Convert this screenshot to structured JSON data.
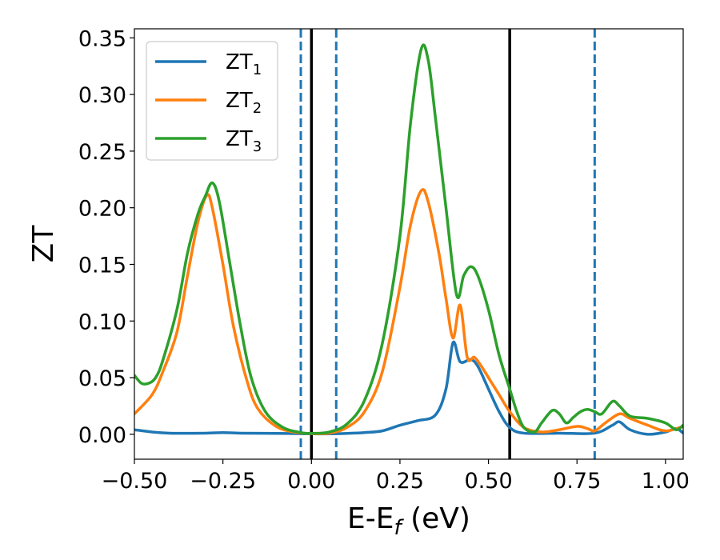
{
  "chart_data": {
    "type": "line",
    "xlabel": "E-E",
    "xlabel_sub": "f",
    "xlabel_unit": " (eV)",
    "ylabel": "ZT",
    "xlim": [
      -0.5,
      1.05
    ],
    "ylim": [
      -0.022,
      0.358
    ],
    "x_ticks": [
      -0.5,
      -0.25,
      0.0,
      0.25,
      0.5,
      0.75,
      1.0
    ],
    "x_tick_labels": [
      "−0.50",
      "−0.25",
      "0.00",
      "0.25",
      "0.50",
      "0.75",
      "1.00"
    ],
    "y_ticks": [
      0.0,
      0.05,
      0.1,
      0.15,
      0.2,
      0.25,
      0.3,
      0.35
    ],
    "y_tick_labels": [
      "0.00",
      "0.05",
      "0.10",
      "0.15",
      "0.20",
      "0.25",
      "0.30",
      "0.35"
    ],
    "legend": {
      "placement": "top-left",
      "entries": [
        {
          "label": "ZT",
          "sub": "1",
          "color": "#1f77b4"
        },
        {
          "label": "ZT",
          "sub": "2",
          "color": "#ff7f0e"
        },
        {
          "label": "ZT",
          "sub": "3",
          "color": "#2ca02c"
        }
      ]
    },
    "vlines": [
      {
        "x": -0.03,
        "style": "dashed",
        "color": "#1f77b4"
      },
      {
        "x": 0.0,
        "style": "solid",
        "color": "#000000"
      },
      {
        "x": 0.07,
        "style": "dashed",
        "color": "#1f77b4"
      },
      {
        "x": 0.56,
        "style": "solid",
        "color": "#000000"
      },
      {
        "x": 0.8,
        "style": "dashed",
        "color": "#1f77b4"
      }
    ],
    "series": [
      {
        "name": "ZT1",
        "color": "#1f77b4",
        "points": [
          [
            -0.5,
            0.004
          ],
          [
            -0.45,
            0.002
          ],
          [
            -0.4,
            0.001
          ],
          [
            -0.3,
            0.001
          ],
          [
            -0.25,
            0.0015
          ],
          [
            -0.2,
            0.001
          ],
          [
            -0.1,
            0.0008
          ],
          [
            0.0,
            0.0004
          ],
          [
            0.05,
            0.0004
          ],
          [
            0.1,
            0.0008
          ],
          [
            0.15,
            0.0015
          ],
          [
            0.2,
            0.003
          ],
          [
            0.25,
            0.008
          ],
          [
            0.3,
            0.012
          ],
          [
            0.35,
            0.017
          ],
          [
            0.38,
            0.04
          ],
          [
            0.4,
            0.081
          ],
          [
            0.42,
            0.064
          ],
          [
            0.45,
            0.066
          ],
          [
            0.47,
            0.06
          ],
          [
            0.5,
            0.04
          ],
          [
            0.53,
            0.02
          ],
          [
            0.56,
            0.006
          ],
          [
            0.6,
            0.001
          ],
          [
            0.7,
            0.001
          ],
          [
            0.8,
            0.001
          ],
          [
            0.85,
            0.008
          ],
          [
            0.87,
            0.011
          ],
          [
            0.9,
            0.004
          ],
          [
            0.95,
            0.0
          ],
          [
            1.0,
            0.002
          ],
          [
            1.03,
            0.005
          ],
          [
            1.05,
            0.001
          ]
        ]
      },
      {
        "name": "ZT2",
        "color": "#ff7f0e",
        "points": [
          [
            -0.5,
            0.018
          ],
          [
            -0.45,
            0.035
          ],
          [
            -0.42,
            0.055
          ],
          [
            -0.38,
            0.09
          ],
          [
            -0.35,
            0.14
          ],
          [
            -0.32,
            0.188
          ],
          [
            -0.295,
            0.211
          ],
          [
            -0.28,
            0.2
          ],
          [
            -0.25,
            0.15
          ],
          [
            -0.22,
            0.095
          ],
          [
            -0.18,
            0.045
          ],
          [
            -0.15,
            0.022
          ],
          [
            -0.1,
            0.007
          ],
          [
            -0.05,
            0.002
          ],
          [
            0.0,
            0.0006
          ],
          [
            0.05,
            0.001
          ],
          [
            0.1,
            0.006
          ],
          [
            0.15,
            0.02
          ],
          [
            0.2,
            0.055
          ],
          [
            0.25,
            0.13
          ],
          [
            0.28,
            0.185
          ],
          [
            0.31,
            0.215
          ],
          [
            0.33,
            0.205
          ],
          [
            0.36,
            0.16
          ],
          [
            0.38,
            0.12
          ],
          [
            0.4,
            0.085
          ],
          [
            0.42,
            0.114
          ],
          [
            0.44,
            0.068
          ],
          [
            0.46,
            0.068
          ],
          [
            0.48,
            0.06
          ],
          [
            0.5,
            0.05
          ],
          [
            0.53,
            0.035
          ],
          [
            0.56,
            0.02
          ],
          [
            0.6,
            0.006
          ],
          [
            0.65,
            0.002
          ],
          [
            0.7,
            0.004
          ],
          [
            0.75,
            0.007
          ],
          [
            0.78,
            0.005
          ],
          [
            0.8,
            0.003
          ],
          [
            0.83,
            0.01
          ],
          [
            0.87,
            0.018
          ],
          [
            0.9,
            0.014
          ],
          [
            0.95,
            0.008
          ],
          [
            1.0,
            0.003
          ],
          [
            1.05,
            0.007
          ]
        ]
      },
      {
        "name": "ZT3",
        "color": "#2ca02c",
        "points": [
          [
            -0.5,
            0.052
          ],
          [
            -0.48,
            0.045
          ],
          [
            -0.46,
            0.045
          ],
          [
            -0.44,
            0.05
          ],
          [
            -0.42,
            0.065
          ],
          [
            -0.38,
            0.11
          ],
          [
            -0.35,
            0.16
          ],
          [
            -0.32,
            0.195
          ],
          [
            -0.3,
            0.21
          ],
          [
            -0.28,
            0.222
          ],
          [
            -0.26,
            0.205
          ],
          [
            -0.23,
            0.15
          ],
          [
            -0.2,
            0.095
          ],
          [
            -0.17,
            0.05
          ],
          [
            -0.13,
            0.02
          ],
          [
            -0.08,
            0.006
          ],
          [
            -0.03,
            0.0015
          ],
          [
            0.0,
            0.0008
          ],
          [
            0.05,
            0.002
          ],
          [
            0.1,
            0.009
          ],
          [
            0.15,
            0.03
          ],
          [
            0.2,
            0.08
          ],
          [
            0.25,
            0.175
          ],
          [
            0.28,
            0.275
          ],
          [
            0.31,
            0.34
          ],
          [
            0.33,
            0.33
          ],
          [
            0.35,
            0.28
          ],
          [
            0.38,
            0.2
          ],
          [
            0.41,
            0.123
          ],
          [
            0.43,
            0.14
          ],
          [
            0.45,
            0.148
          ],
          [
            0.47,
            0.14
          ],
          [
            0.5,
            0.11
          ],
          [
            0.53,
            0.07
          ],
          [
            0.56,
            0.04
          ],
          [
            0.58,
            0.02
          ],
          [
            0.6,
            0.006
          ],
          [
            0.63,
            0.002
          ],
          [
            0.65,
            0.01
          ],
          [
            0.68,
            0.021
          ],
          [
            0.7,
            0.018
          ],
          [
            0.72,
            0.01
          ],
          [
            0.74,
            0.015
          ],
          [
            0.76,
            0.02
          ],
          [
            0.78,
            0.022
          ],
          [
            0.8,
            0.02
          ],
          [
            0.82,
            0.018
          ],
          [
            0.85,
            0.029
          ],
          [
            0.87,
            0.025
          ],
          [
            0.9,
            0.016
          ],
          [
            0.95,
            0.014
          ],
          [
            1.0,
            0.01
          ],
          [
            1.03,
            0.004
          ],
          [
            1.05,
            0.008
          ]
        ]
      }
    ]
  }
}
